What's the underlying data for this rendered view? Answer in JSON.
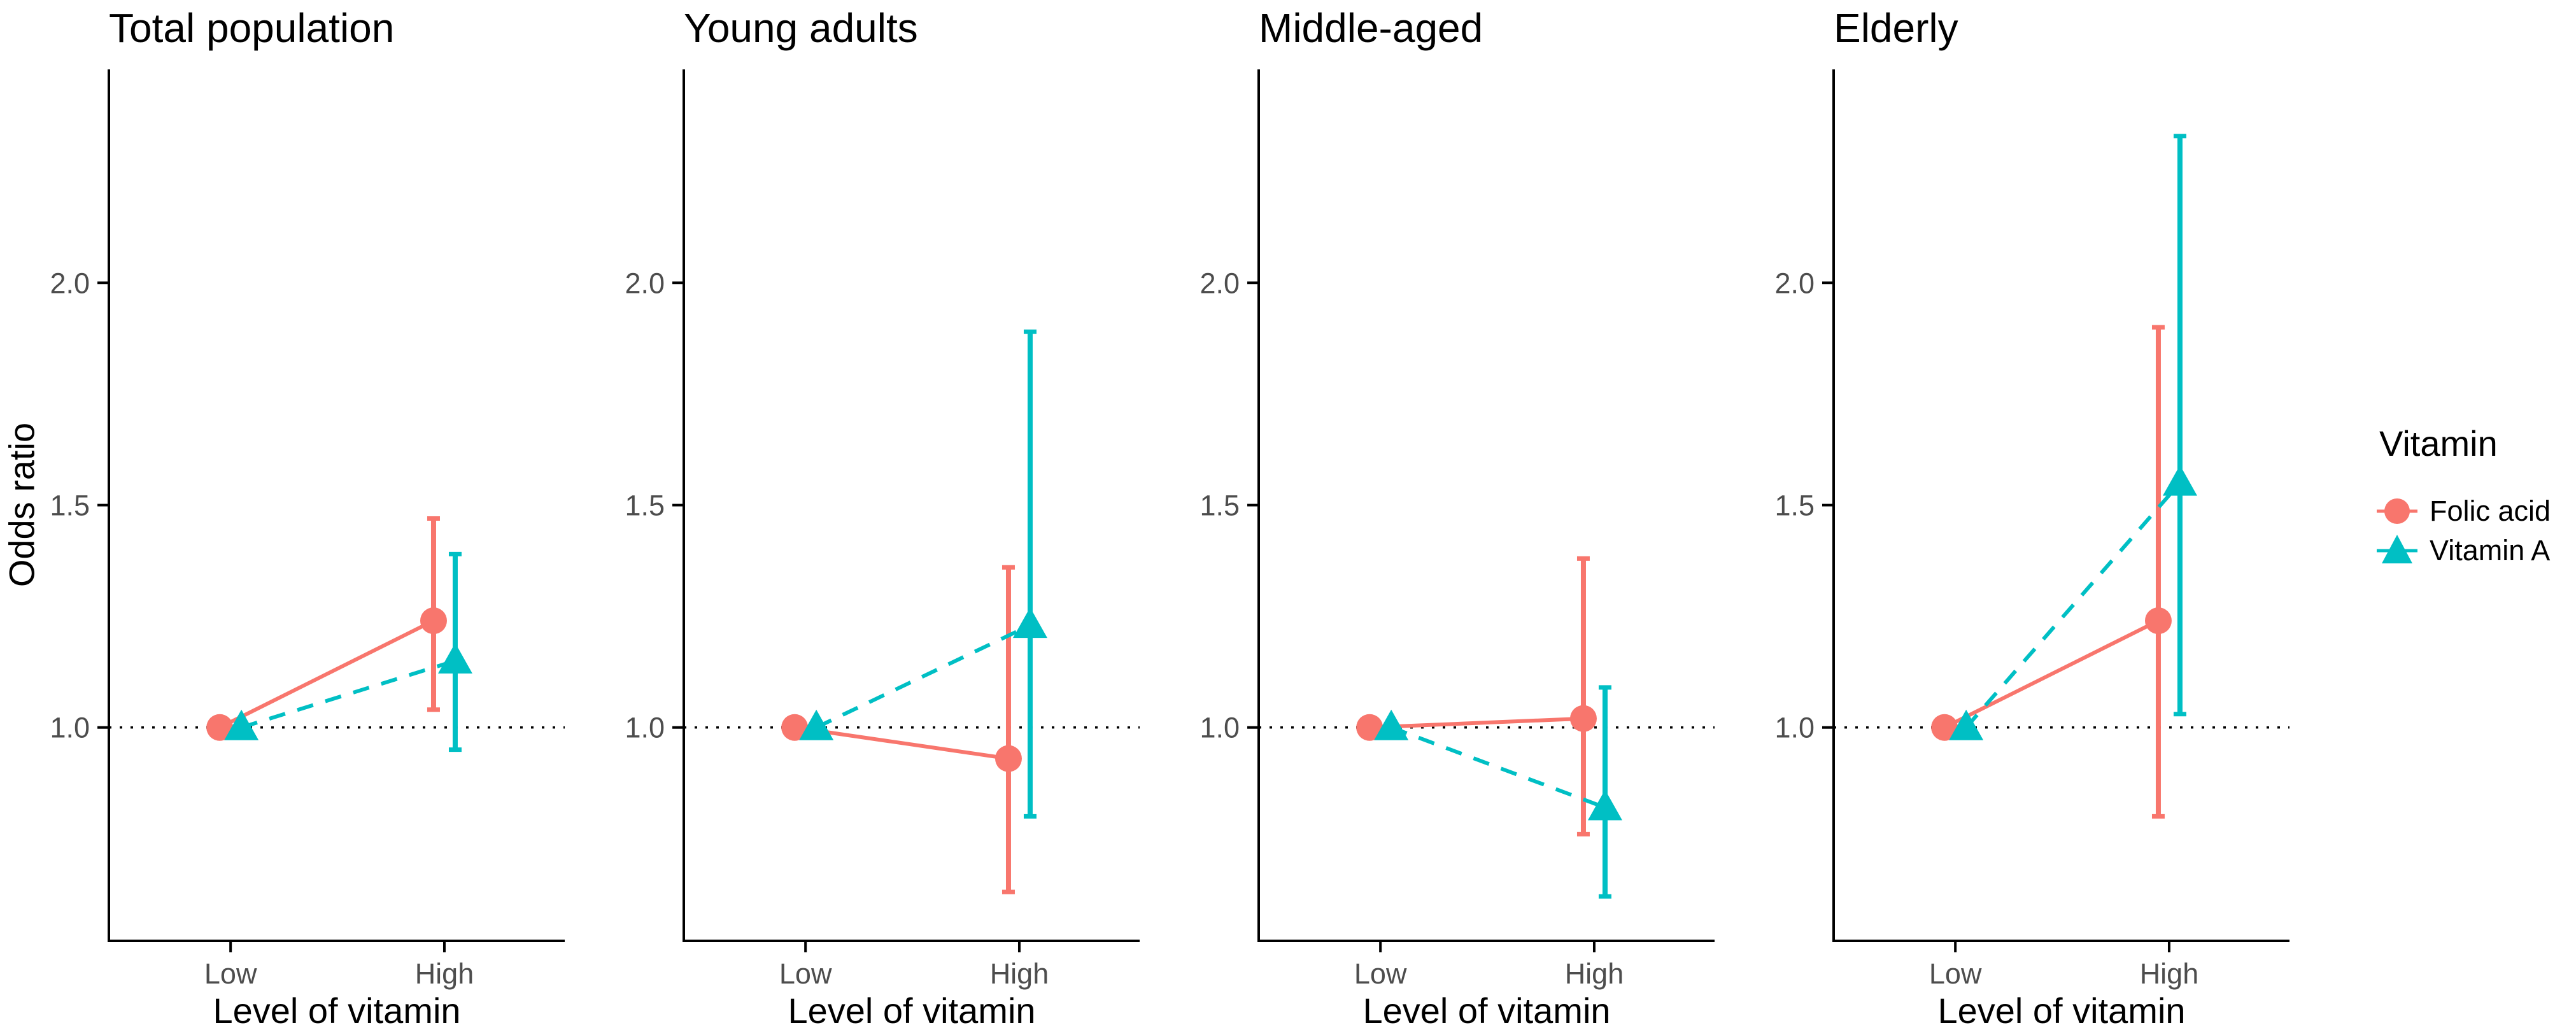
{
  "ylabel": "Odds ratio",
  "chart_data": {
    "type": "line",
    "subtype": "faceted-pointrange-odds-ratio",
    "title": "",
    "xlabel": "Level of vitamin",
    "ylabel": "Odds ratio",
    "x_categories": [
      "Low",
      "High"
    ],
    "y_ticks": [
      1.0,
      1.5,
      2.0
    ],
    "ylim": [
      0.52,
      2.48
    ],
    "ref_line": 1.0,
    "grid": false,
    "legend_position": "right",
    "colors": {
      "folic_acid": "#F8766D",
      "vitamin_a": "#00BFC4",
      "axis": "#000000",
      "tick_label": "#4D4D4D",
      "ref_line": "#000000",
      "background": "#FFFFFF"
    },
    "legend": {
      "title": "Vitamin",
      "items": [
        {
          "label": "Folic acid",
          "shape": "circle",
          "color": "#F8766D"
        },
        {
          "label": "Vitamin A",
          "shape": "triangle",
          "color": "#00BFC4"
        }
      ]
    },
    "facets": [
      {
        "title": "Total population",
        "series": [
          {
            "name": "Folic acid",
            "shape": "circle",
            "color": "#F8766D",
            "linestyle": "solid",
            "points": [
              {
                "x": "Low",
                "or": 1.0,
                "lo": null,
                "hi": null
              },
              {
                "x": "High",
                "or": 1.24,
                "lo": 1.04,
                "hi": 1.47
              }
            ]
          },
          {
            "name": "Vitamin A",
            "shape": "triangle",
            "color": "#00BFC4",
            "linestyle": "dashed",
            "points": [
              {
                "x": "Low",
                "or": 1.0,
                "lo": null,
                "hi": null
              },
              {
                "x": "High",
                "or": 1.15,
                "lo": 0.95,
                "hi": 1.39
              }
            ]
          }
        ]
      },
      {
        "title": "Young adults",
        "series": [
          {
            "name": "Folic acid",
            "shape": "circle",
            "color": "#F8766D",
            "linestyle": "solid",
            "points": [
              {
                "x": "Low",
                "or": 1.0,
                "lo": null,
                "hi": null
              },
              {
                "x": "High",
                "or": 0.93,
                "lo": 0.63,
                "hi": 1.36
              }
            ]
          },
          {
            "name": "Vitamin A",
            "shape": "triangle",
            "color": "#00BFC4",
            "linestyle": "dashed",
            "points": [
              {
                "x": "Low",
                "or": 1.0,
                "lo": null,
                "hi": null
              },
              {
                "x": "High",
                "or": 1.23,
                "lo": 0.8,
                "hi": 1.89
              }
            ]
          }
        ]
      },
      {
        "title": "Middle-aged",
        "series": [
          {
            "name": "Folic acid",
            "shape": "circle",
            "color": "#F8766D",
            "linestyle": "solid",
            "points": [
              {
                "x": "Low",
                "or": 1.0,
                "lo": null,
                "hi": null
              },
              {
                "x": "High",
                "or": 1.02,
                "lo": 0.76,
                "hi": 1.38
              }
            ]
          },
          {
            "name": "Vitamin A",
            "shape": "triangle",
            "color": "#00BFC4",
            "linestyle": "dashed",
            "points": [
              {
                "x": "Low",
                "or": 1.0,
                "lo": null,
                "hi": null
              },
              {
                "x": "High",
                "or": 0.82,
                "lo": 0.62,
                "hi": 1.09
              }
            ]
          }
        ]
      },
      {
        "title": "Elderly",
        "series": [
          {
            "name": "Folic acid",
            "shape": "circle",
            "color": "#F8766D",
            "linestyle": "solid",
            "points": [
              {
                "x": "Low",
                "or": 1.0,
                "lo": null,
                "hi": null
              },
              {
                "x": "High",
                "or": 1.24,
                "lo": 0.8,
                "hi": 1.9
              }
            ]
          },
          {
            "name": "Vitamin A",
            "shape": "triangle",
            "color": "#00BFC4",
            "linestyle": "dashed",
            "points": [
              {
                "x": "Low",
                "or": 1.0,
                "lo": null,
                "hi": null
              },
              {
                "x": "High",
                "or": 1.55,
                "lo": 1.03,
                "hi": 2.33
              }
            ]
          }
        ]
      }
    ]
  }
}
